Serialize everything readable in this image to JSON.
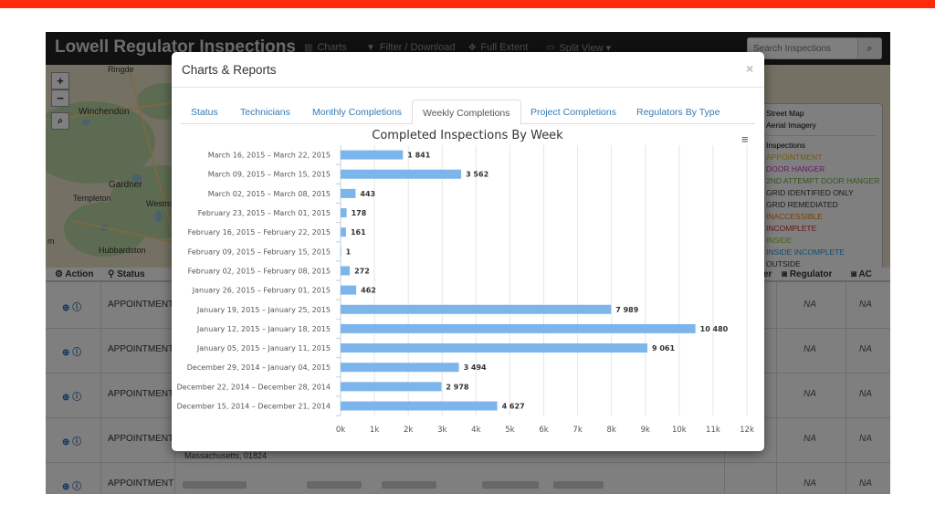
{
  "navbar": {
    "brand": "Lowell Regulator Inspections",
    "items": [
      {
        "label": "Charts",
        "icon": "bar-chart-icon"
      },
      {
        "label": "Filter / Download",
        "icon": "filter-icon"
      },
      {
        "label": "Full Extent",
        "icon": "expand-icon"
      },
      {
        "label": "Split View ▾",
        "icon": "monitor-icon"
      }
    ],
    "search_placeholder": "Search Inspections"
  },
  "map": {
    "labels": [
      "Ringde",
      "Winchendon",
      "Gardner",
      "Templeton",
      "Westm",
      "Hubbardston",
      "m"
    ],
    "zoom_in": "+",
    "zoom_out": "−"
  },
  "legend": {
    "base_layers": [
      "Street Map",
      "Aerial Imagery"
    ],
    "title": "Inspections",
    "items": [
      {
        "label": "APPOINTMENT",
        "color": "#e6b800"
      },
      {
        "label": "DOOR HANGER",
        "color": "#cc33cc"
      },
      {
        "label": "2ND ATTEMPT DOOR HANGER",
        "color": "#66aa33"
      },
      {
        "label": "GRID IDENTIFIED ONLY",
        "color": "#333333"
      },
      {
        "label": "GRID REMEDIATED",
        "color": "#333333"
      },
      {
        "label": "INACCESSIBLE",
        "color": "#ee7711"
      },
      {
        "label": "INCOMPLETE",
        "color": "#dd2222"
      },
      {
        "label": "INSIDE",
        "color": "#88cc22"
      },
      {
        "label": "INSIDE INCOMPLETE",
        "color": "#2299dd"
      },
      {
        "label": "OUTSIDE",
        "color": "#333333"
      }
    ]
  },
  "table": {
    "headers": {
      "action": "Action",
      "status": "Status",
      "er": "er",
      "regulator": "Regulator",
      "ac": "AC"
    },
    "rows": [
      {
        "status": "APPOINTMENT",
        "reg": "NA",
        "ac": "NA"
      },
      {
        "status": "APPOINTMENT",
        "reg": "NA",
        "ac": "NA"
      },
      {
        "status": "APPOINTMENT",
        "reg": "NA",
        "ac": "NA"
      },
      {
        "status": "APPOINTMENT",
        "reg": "NA",
        "ac": "NA"
      },
      {
        "status": "APPOINTMENT",
        "reg": "NA",
        "ac": "NA"
      }
    ],
    "address_fragment": "Massachusetts, 01824"
  },
  "modal": {
    "title": "Charts & Reports",
    "close": "×",
    "tabs": [
      "Status",
      "Technicians",
      "Monthly Completions",
      "Weekly Completions",
      "Project Completions",
      "Regulators By Type"
    ],
    "active_tab": 3
  },
  "chart_data": {
    "type": "bar",
    "orientation": "horizontal",
    "title": "Completed Inspections By Week",
    "categories": [
      "March 16, 2015 – March 22, 2015",
      "March 09, 2015 – March 15, 2015",
      "March 02, 2015 – March 08, 2015",
      "February 23, 2015 – March 01, 2015",
      "February 16, 2015 – February 22, 2015",
      "February 09, 2015 – February 15, 2015",
      "February 02, 2015 – February 08, 2015",
      "January 26, 2015 – February 01, 2015",
      "January 19, 2015 – January 25, 2015",
      "January 12, 2015 – January 18, 2015",
      "January 05, 2015 – January 11, 2015",
      "December 29, 2014 – January 04, 2015",
      "December 22, 2014 – December 28, 2014",
      "December 15, 2014 – December 21, 2014"
    ],
    "values": [
      1841,
      3562,
      443,
      178,
      161,
      1,
      272,
      462,
      7989,
      10480,
      9061,
      3494,
      2978,
      4627
    ],
    "value_labels": [
      "1 841",
      "3 562",
      "443",
      "178",
      "161",
      "1",
      "272",
      "462",
      "7 989",
      "10 480",
      "9 061",
      "3 494",
      "2 978",
      "4 627"
    ],
    "xlim": [
      0,
      12000
    ],
    "ticks": [
      "0k",
      "1k",
      "2k",
      "3k",
      "4k",
      "5k",
      "6k",
      "7k",
      "8k",
      "9k",
      "10k",
      "11k",
      "12k"
    ],
    "bar_color": "#7cb5ec",
    "grid": true
  }
}
